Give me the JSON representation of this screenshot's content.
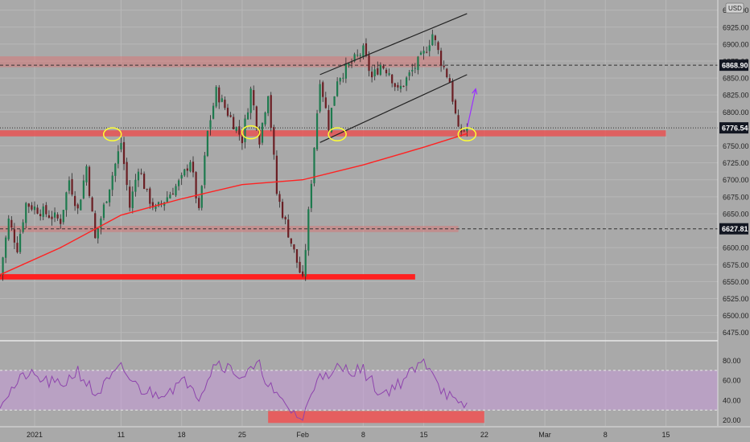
{
  "chart_data": {
    "type": "candlestick",
    "currency": "USD",
    "price_axis": {
      "ylim": [
        6464,
        6965
      ],
      "ticks": [
        6475,
        6500,
        6525,
        6550,
        6575,
        6600,
        6650,
        6675,
        6700,
        6725,
        6750,
        6800,
        6825,
        6850,
        6875,
        6900,
        6925,
        6950
      ],
      "tick_labels": [
        "6475.00",
        "6500.00",
        "6525.00",
        "6550.00",
        "6575.00",
        "6600.00",
        "6650.00",
        "6675.00",
        "6700.00",
        "6725.00",
        "6750.00",
        "6800.00",
        "6825.00",
        "6850.00",
        "6875.00",
        "6900.00",
        "6925.00",
        "6950.00"
      ],
      "price_tags": [
        {
          "value": 6868.9,
          "label": "6868.90",
          "color": "#131722",
          "line": "dashed"
        },
        {
          "value": 6776.54,
          "label": "6776.54",
          "color": "#131722",
          "line": "dotted"
        },
        {
          "value": 6627.81,
          "label": "6627.81",
          "color": "#131722",
          "line": "dashed"
        }
      ]
    },
    "time_axis": {
      "xlim": [
        "2020-12-28",
        "2021-03-21"
      ],
      "ticks": [
        {
          "date": "2021-01-01",
          "label": "2021"
        },
        {
          "date": "2021-01-11",
          "label": "11"
        },
        {
          "date": "2021-01-18",
          "label": "18"
        },
        {
          "date": "2021-01-25",
          "label": "25"
        },
        {
          "date": "2021-02-01",
          "label": "Feb"
        },
        {
          "date": "2021-02-08",
          "label": "8"
        },
        {
          "date": "2021-02-15",
          "label": "15"
        },
        {
          "date": "2021-02-22",
          "label": "22"
        },
        {
          "date": "2021-03-01",
          "label": "Mar"
        },
        {
          "date": "2021-03-08",
          "label": "8"
        },
        {
          "date": "2021-03-15",
          "label": "15"
        }
      ]
    },
    "price_path": [
      [
        "2020-12-28",
        6560
      ],
      [
        "2020-12-29",
        6640
      ],
      [
        "2020-12-30",
        6600
      ],
      [
        "2020-12-31",
        6665
      ],
      [
        "2021-01-04",
        6640
      ],
      [
        "2021-01-05",
        6700
      ],
      [
        "2021-01-06",
        6655
      ],
      [
        "2021-01-07",
        6720
      ],
      [
        "2021-01-08",
        6612
      ],
      [
        "2021-01-11",
        6755
      ],
      [
        "2021-01-12",
        6660
      ],
      [
        "2021-01-13",
        6720
      ],
      [
        "2021-01-14",
        6678
      ],
      [
        "2021-01-15",
        6655
      ],
      [
        "2021-01-18",
        6700
      ],
      [
        "2021-01-19",
        6730
      ],
      [
        "2021-01-20",
        6650
      ],
      [
        "2021-01-21",
        6770
      ],
      [
        "2021-01-22",
        6830
      ],
      [
        "2021-01-25",
        6760
      ],
      [
        "2021-01-26",
        6832
      ],
      [
        "2021-01-27",
        6760
      ],
      [
        "2021-01-28",
        6830
      ],
      [
        "2021-01-29",
        6680
      ],
      [
        "2021-02-01",
        6550
      ],
      [
        "2021-02-02",
        6700
      ],
      [
        "2021-02-03",
        6850
      ],
      [
        "2021-02-04",
        6780
      ],
      [
        "2021-02-05",
        6850
      ],
      [
        "2021-02-08",
        6890
      ],
      [
        "2021-02-09",
        6850
      ],
      [
        "2021-02-10",
        6870
      ],
      [
        "2021-02-11",
        6860
      ],
      [
        "2021-02-12",
        6830
      ],
      [
        "2021-02-15",
        6885
      ],
      [
        "2021-02-16",
        6915
      ],
      [
        "2021-02-17",
        6875
      ],
      [
        "2021-02-18",
        6845
      ],
      [
        "2021-02-19",
        6770
      ],
      [
        "2021-02-20",
        6775
      ]
    ],
    "moving_average": {
      "color": "#ff2222",
      "points": [
        [
          "2020-12-28",
          6560
        ],
        [
          "2021-01-04",
          6600
        ],
        [
          "2021-01-11",
          6648
        ],
        [
          "2021-01-18",
          6672
        ],
        [
          "2021-01-25",
          6693
        ],
        [
          "2021-02-01",
          6700
        ],
        [
          "2021-02-08",
          6722
        ],
        [
          "2021-02-15",
          6748
        ],
        [
          "2021-02-20",
          6768
        ]
      ]
    },
    "zones": [
      {
        "y0": 6866,
        "y1": 6882,
        "x0": "2020-12-28",
        "x1": "2021-02-17",
        "color": "#e06c6c",
        "opacity": 0.45
      },
      {
        "y0": 6764,
        "y1": 6773,
        "x0": "2020-12-28",
        "x1": "2021-03-15",
        "color": "#f04848",
        "opacity": 0.75
      },
      {
        "y0": 6623,
        "y1": 6632,
        "x0": "2020-12-28",
        "x1": "2021-02-19",
        "color": "#e06c6c",
        "opacity": 0.45
      },
      {
        "y0": 6553,
        "y1": 6561,
        "x0": "2020-12-28",
        "x1": "2021-02-14",
        "color": "#ff2020",
        "opacity": 1.0
      }
    ],
    "trend_channel": {
      "color": "#222222",
      "lines": [
        [
          [
            "2021-02-03",
            6855
          ],
          [
            "2021-02-20",
            6945
          ]
        ],
        [
          [
            "2021-02-03",
            6755
          ],
          [
            "2021-02-20",
            6855
          ]
        ]
      ]
    },
    "projection_arrow": {
      "color": "#9b30ff",
      "from": [
        "2021-02-20",
        6776
      ],
      "to": [
        "2021-02-21",
        6834
      ]
    },
    "highlight_circles": [
      {
        "date": "2021-01-10",
        "value": 6767
      },
      {
        "date": "2021-01-26",
        "value": 6770
      },
      {
        "date": "2021-02-05",
        "value": 6767
      },
      {
        "date": "2021-02-20",
        "value": 6767
      }
    ],
    "rsi": {
      "ylim": [
        14,
        99
      ],
      "ticks": [
        20,
        40,
        60,
        80
      ],
      "tick_labels": [
        "20.00",
        "40.00",
        "60.00",
        "80.00"
      ],
      "upper_band": 70,
      "lower_band": 30,
      "band_fill": "#c79ad8",
      "line_color": "#8e44ad",
      "zone": {
        "y0": 17,
        "y1": 29,
        "x0": "2021-01-28",
        "x1": "2021-02-22",
        "color": "#e85b5b"
      },
      "path": [
        [
          "2020-12-28",
          38
        ],
        [
          "2020-12-31",
          66
        ],
        [
          "2021-01-04",
          54
        ],
        [
          "2021-01-06",
          70
        ],
        [
          "2021-01-08",
          45
        ],
        [
          "2021-01-11",
          72
        ],
        [
          "2021-01-13",
          52
        ],
        [
          "2021-01-15",
          46
        ],
        [
          "2021-01-19",
          60
        ],
        [
          "2021-01-20",
          44
        ],
        [
          "2021-01-22",
          80
        ],
        [
          "2021-01-25",
          64
        ],
        [
          "2021-01-27",
          74
        ],
        [
          "2021-01-29",
          42
        ],
        [
          "2021-02-01",
          20
        ],
        [
          "2021-02-03",
          72
        ],
        [
          "2021-02-04",
          58
        ],
        [
          "2021-02-05",
          72
        ],
        [
          "2021-02-08",
          70
        ],
        [
          "2021-02-10",
          46
        ],
        [
          "2021-02-12",
          56
        ],
        [
          "2021-02-15",
          78
        ],
        [
          "2021-02-16",
          72
        ],
        [
          "2021-02-17",
          52
        ],
        [
          "2021-02-18",
          44
        ],
        [
          "2021-02-19",
          32
        ],
        [
          "2021-02-20",
          36
        ]
      ]
    }
  },
  "colors": {
    "background": "#a9a9a9",
    "up_candle": "#1e7a4e",
    "down_candle": "#6b1f24",
    "grid": "#b8b8b8",
    "axis_text": "#222222",
    "highlight": "#ffff33"
  }
}
